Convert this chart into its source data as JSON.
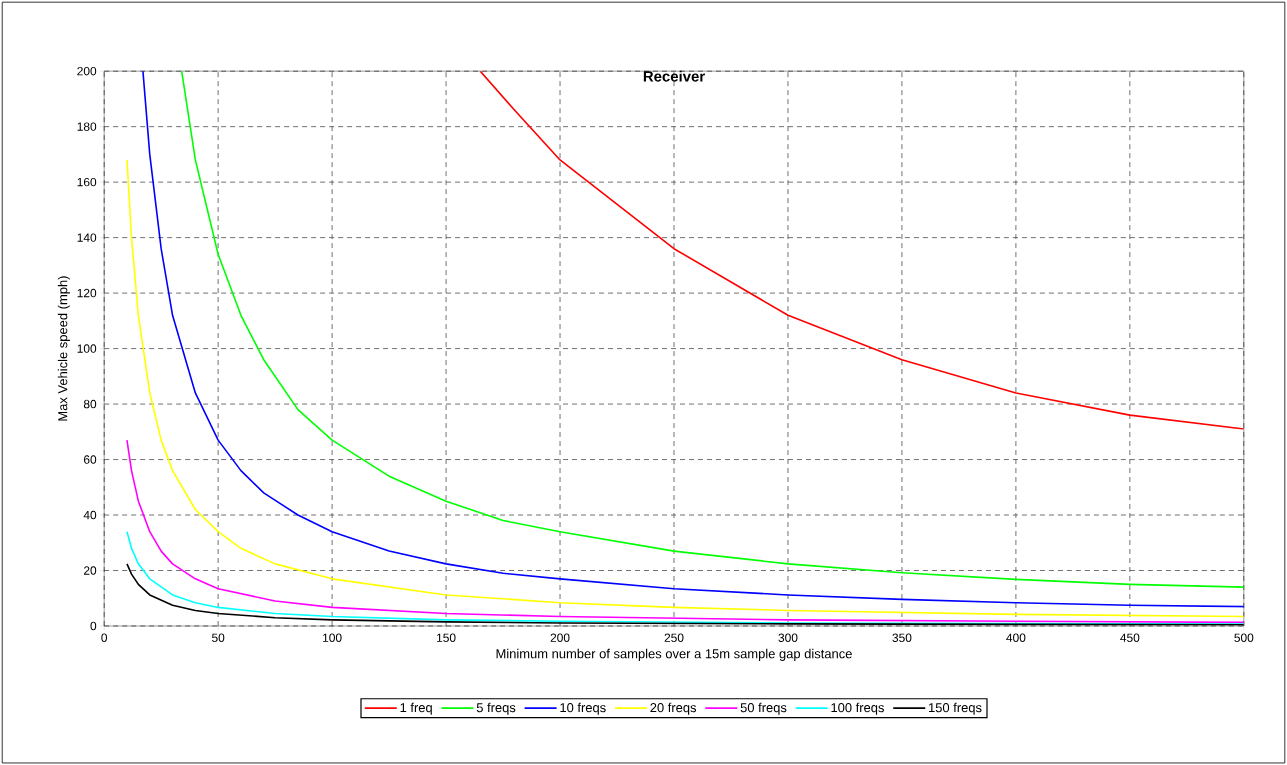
{
  "chart_data": {
    "type": "line",
    "title": "Receiver",
    "xlabel": "Minimum number of samples over a 15m sample gap distance",
    "ylabel": "Max Vehicle speed (mph)",
    "xlim": [
      0,
      500
    ],
    "ylim": [
      0,
      200
    ],
    "xticks": [
      0,
      50,
      100,
      150,
      200,
      250,
      300,
      350,
      400,
      450,
      500
    ],
    "yticks": [
      0,
      20,
      40,
      60,
      80,
      100,
      120,
      140,
      160,
      180,
      200
    ],
    "grid": true,
    "legend": "bottom",
    "marker": "none",
    "line_style": "solid",
    "series": [
      {
        "name": "1 freq",
        "color": "#ff0000",
        "x": [
          165,
          180,
          200,
          250,
          300,
          350,
          400,
          450,
          500
        ],
        "values": [
          200,
          186,
          168,
          136,
          112,
          96,
          84,
          76,
          71
        ]
      },
      {
        "name": "5 freqs",
        "color": "#00ff00",
        "x": [
          34,
          40,
          50,
          60,
          70,
          85,
          100,
          125,
          150,
          175,
          200,
          250,
          300,
          350,
          400,
          450,
          500
        ],
        "values": [
          200,
          168,
          134,
          112,
          96,
          78,
          67,
          54,
          45,
          38,
          34,
          27,
          22.4,
          19.2,
          16.8,
          15,
          14
        ]
      },
      {
        "name": "10 freqs",
        "color": "#0000ff",
        "x": [
          17,
          20,
          25,
          30,
          40,
          50,
          60,
          70,
          85,
          100,
          125,
          150,
          175,
          200,
          250,
          300,
          350,
          400,
          450,
          500
        ],
        "values": [
          200,
          170,
          136,
          112,
          84,
          67,
          56,
          48,
          40,
          34,
          27,
          22.4,
          19,
          17,
          13.4,
          11.2,
          9.6,
          8.4,
          7.5,
          7
        ]
      },
      {
        "name": "20 freqs",
        "color": "#ffff00",
        "x": [
          10,
          12,
          15,
          20,
          25,
          30,
          40,
          50,
          60,
          75,
          100,
          150,
          200,
          250,
          300,
          400,
          500
        ],
        "values": [
          168,
          140,
          112,
          84,
          67,
          56,
          42,
          34,
          28,
          22.4,
          17,
          11.2,
          8.4,
          6.7,
          5.6,
          4.2,
          3.4
        ]
      },
      {
        "name": "50 freqs",
        "color": "#ff00ff",
        "x": [
          10,
          12,
          15,
          20,
          25,
          30,
          40,
          50,
          75,
          100,
          150,
          200,
          300,
          400,
          500
        ],
        "values": [
          67,
          56,
          45,
          34,
          27,
          22.4,
          17,
          13.4,
          9,
          6.7,
          4.5,
          3.4,
          2.2,
          1.7,
          1.3
        ]
      },
      {
        "name": "100 freqs",
        "color": "#00ffff",
        "x": [
          10,
          12,
          15,
          20,
          30,
          40,
          50,
          75,
          100,
          150,
          200,
          300,
          500
        ],
        "values": [
          34,
          28,
          22.4,
          17,
          11.2,
          8.4,
          6.7,
          4.5,
          3.4,
          2.2,
          1.7,
          1.1,
          0.7
        ]
      },
      {
        "name": "150 freqs",
        "color": "#000000",
        "x": [
          10,
          12,
          15,
          20,
          30,
          40,
          50,
          75,
          100,
          150,
          200,
          300,
          500
        ],
        "values": [
          22.4,
          18.7,
          15,
          11.2,
          7.5,
          5.6,
          4.5,
          3,
          2.2,
          1.5,
          1.1,
          0.75,
          0.45
        ]
      }
    ]
  }
}
